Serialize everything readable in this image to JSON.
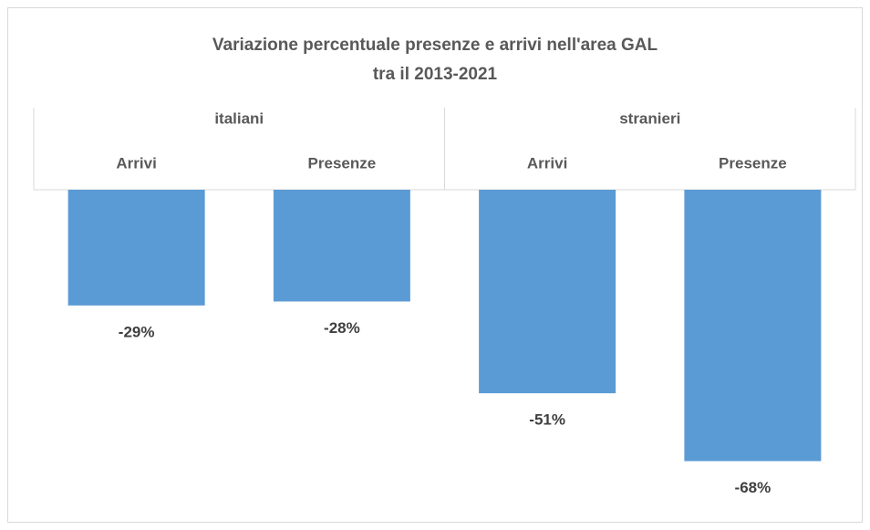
{
  "chart_data": {
    "type": "bar",
    "title": [
      "Variazione percentuale presenze e arrivi nell'area GAL",
      "tra il 2013-2021"
    ],
    "groups": [
      "italiani",
      "stranieri"
    ],
    "categories": [
      "Arrivi",
      "Presenze",
      "Arrivi",
      "Presenze"
    ],
    "values": [
      -29,
      -28,
      -51,
      -68
    ],
    "value_labels": [
      "-29%",
      "-28%",
      "-51%",
      "-68%"
    ],
    "color": "#5b9bd5",
    "ylim": [
      -80,
      0
    ]
  }
}
